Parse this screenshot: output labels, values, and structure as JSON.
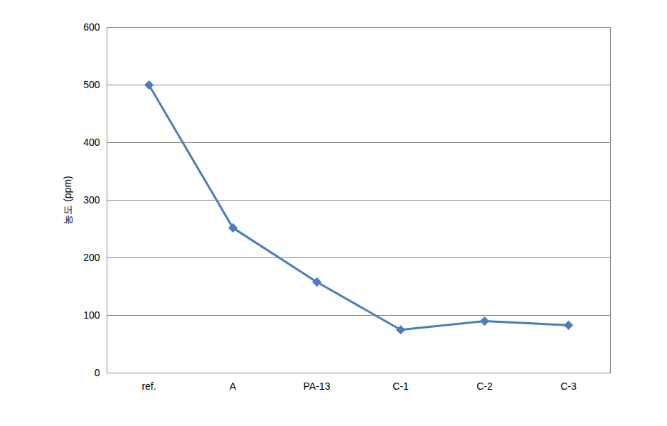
{
  "chart_data": {
    "type": "line",
    "y_label": "농도 (ppm)",
    "categories": [
      "ref.",
      "A",
      "PA-13",
      "C-1",
      "C-2",
      "C-3"
    ],
    "values": [
      500,
      252,
      158,
      75,
      90,
      83
    ],
    "color": "#4a7ebb",
    "marker": "diamond",
    "ylim": [
      0,
      600
    ],
    "yticks": [
      0,
      100,
      200,
      300,
      400,
      500,
      600
    ],
    "grid": true
  }
}
